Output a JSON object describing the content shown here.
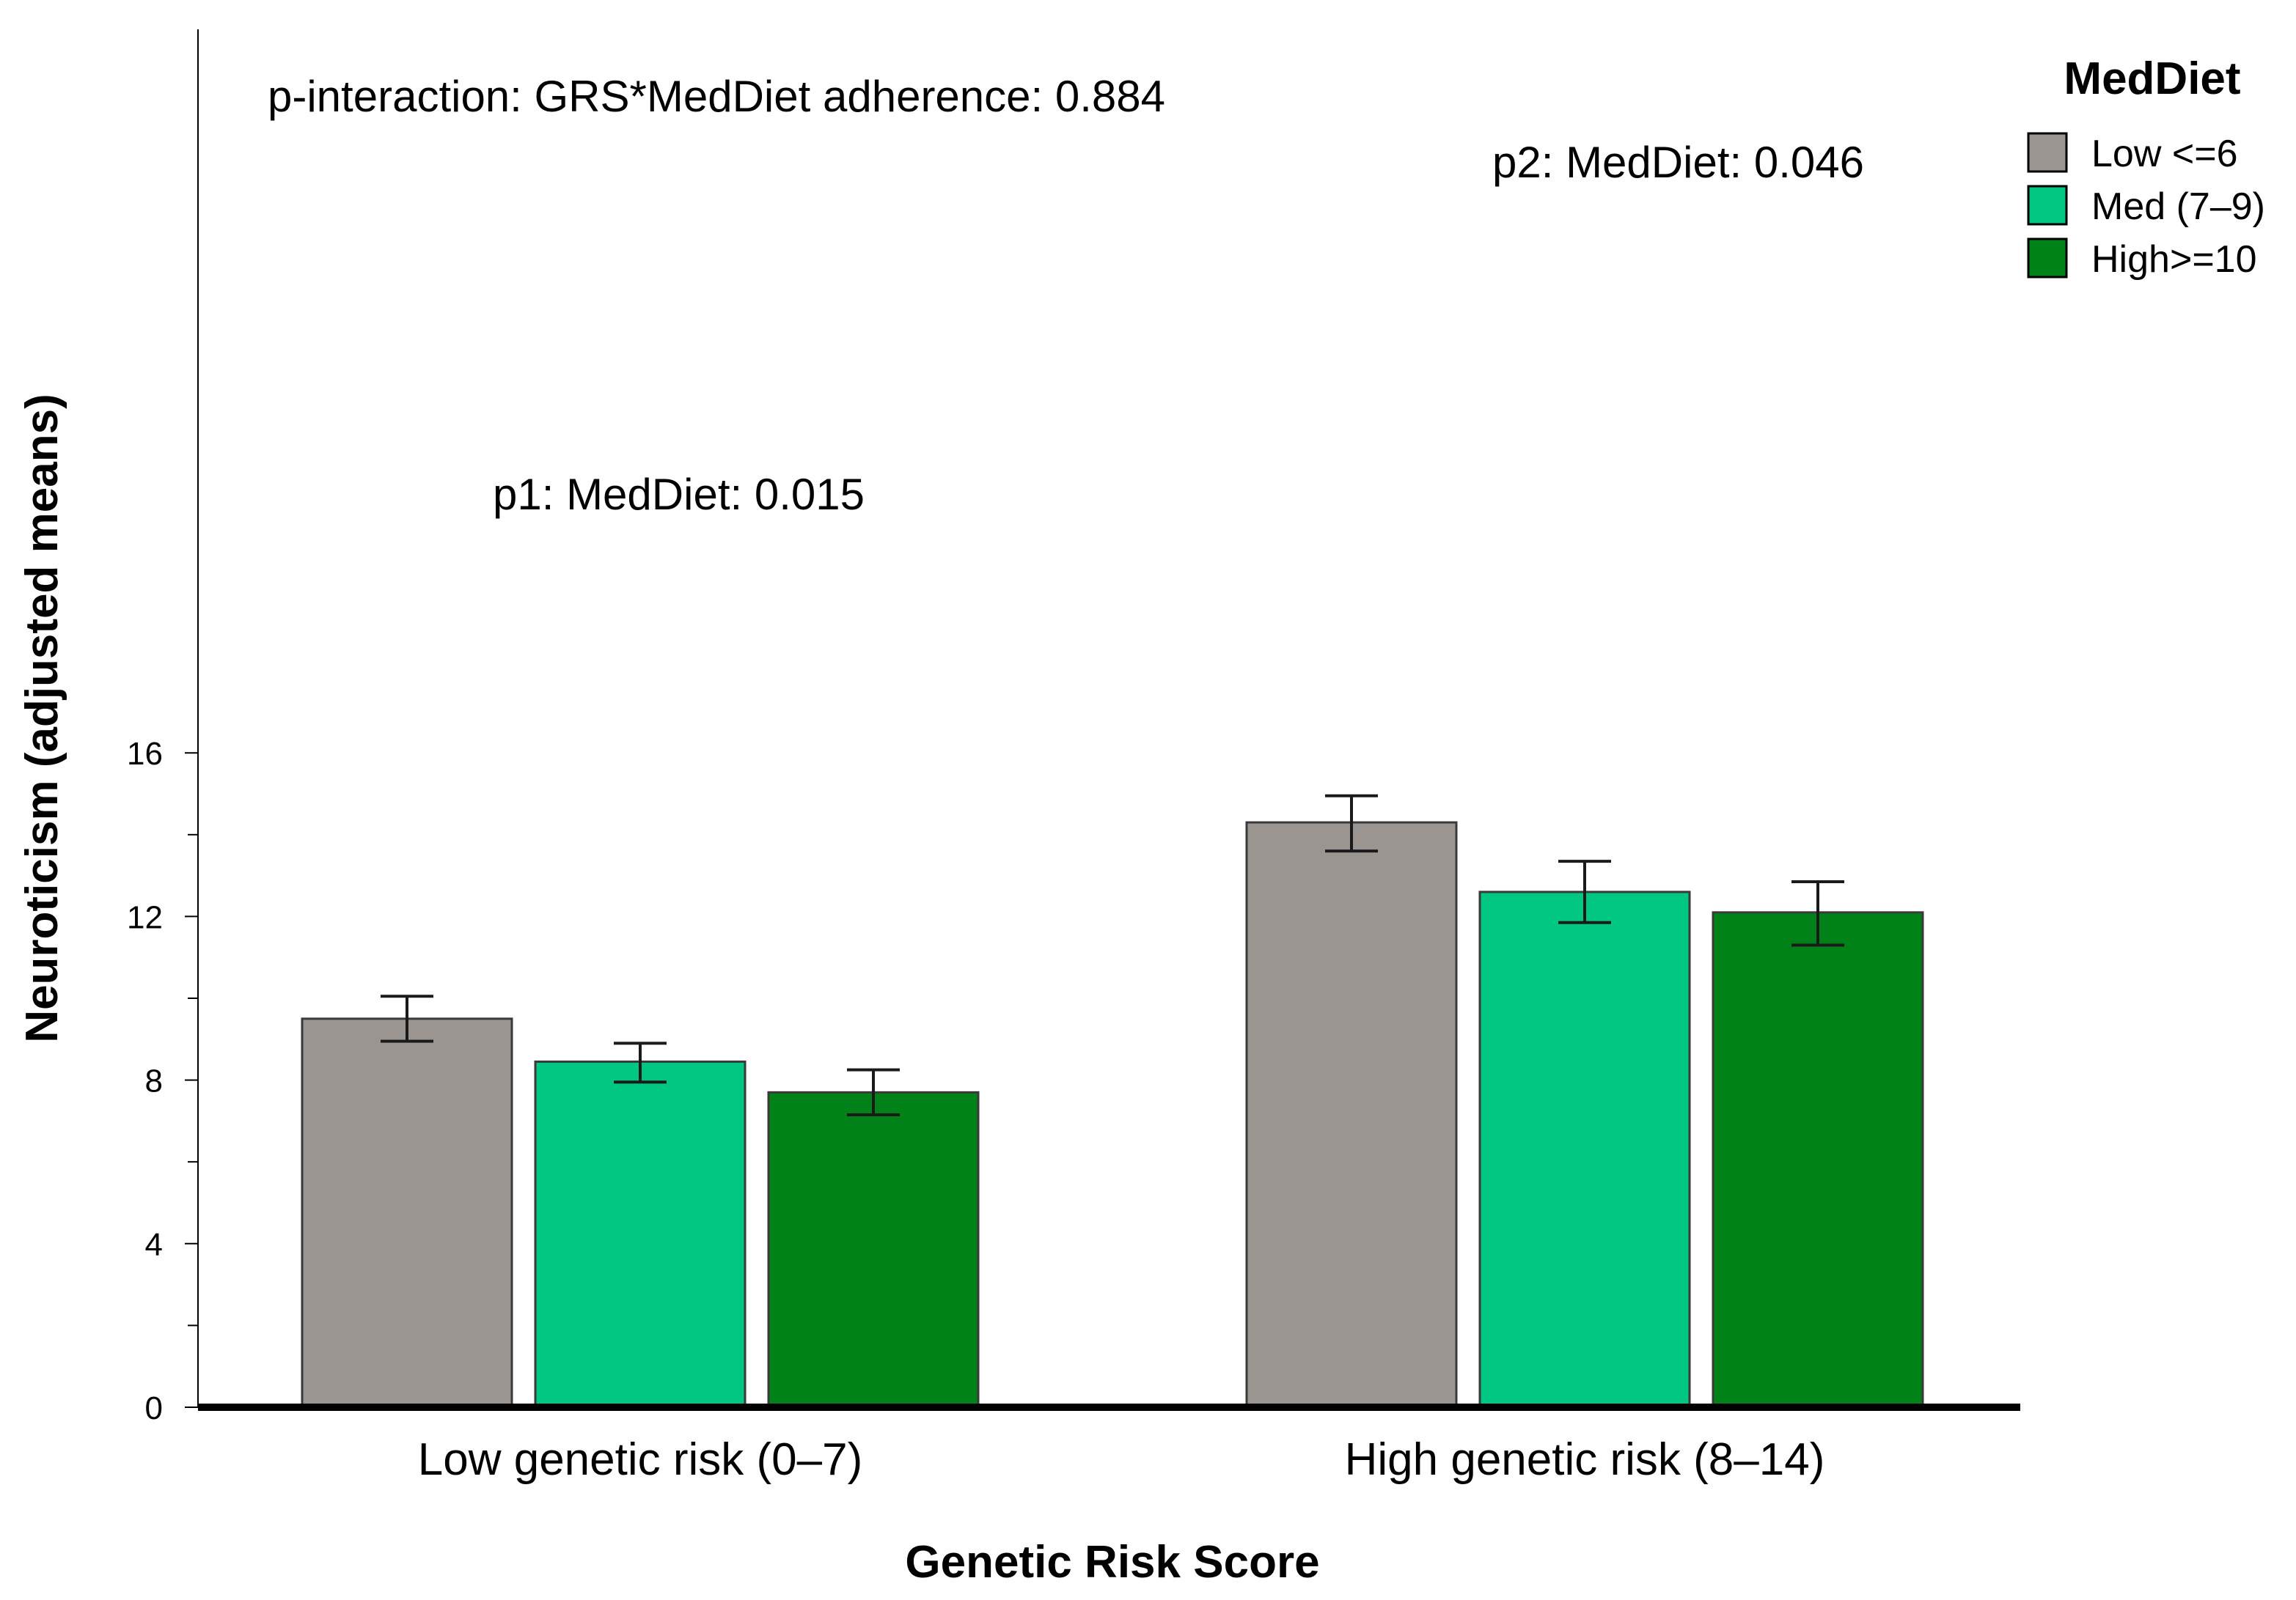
{
  "chart_data": {
    "type": "bar",
    "title": "",
    "xlabel": "Genetic Risk Score",
    "ylabel": "Neuroticism (adjusted means)",
    "ylim": [
      0,
      17.5
    ],
    "yticks": [
      0,
      4,
      8,
      12,
      16
    ],
    "grid": false,
    "legend_position": "top-right",
    "legend_title": "MedDiet",
    "categories": [
      "Low genetic risk (0–7)",
      "High genetic risk (8–14)"
    ],
    "series": [
      {
        "name": "Low <=6",
        "color": "#9b9592",
        "values": [
          9.5,
          14.3
        ],
        "error_low": [
          8.95,
          13.6
        ],
        "error_high": [
          10.05,
          14.95
        ]
      },
      {
        "name": "Med (7–9)",
        "color": "#00c882",
        "values": [
          8.45,
          12.6
        ],
        "error_low": [
          7.95,
          11.85
        ],
        "error_high": [
          8.9,
          13.35
        ]
      },
      {
        "name": "High>=10",
        "color": "#008218",
        "values": [
          7.7,
          12.1
        ],
        "error_low": [
          7.15,
          11.3
        ],
        "error_high": [
          8.25,
          12.85
        ]
      }
    ],
    "annotations": [
      {
        "id": "p_interaction",
        "text": "p-interaction: GRS*MedDiet adherence: 0.884"
      },
      {
        "id": "p1",
        "text": "p1: MedDiet: 0.015"
      },
      {
        "id": "p2",
        "text": "p2: MedDiet: 0.046"
      }
    ]
  }
}
